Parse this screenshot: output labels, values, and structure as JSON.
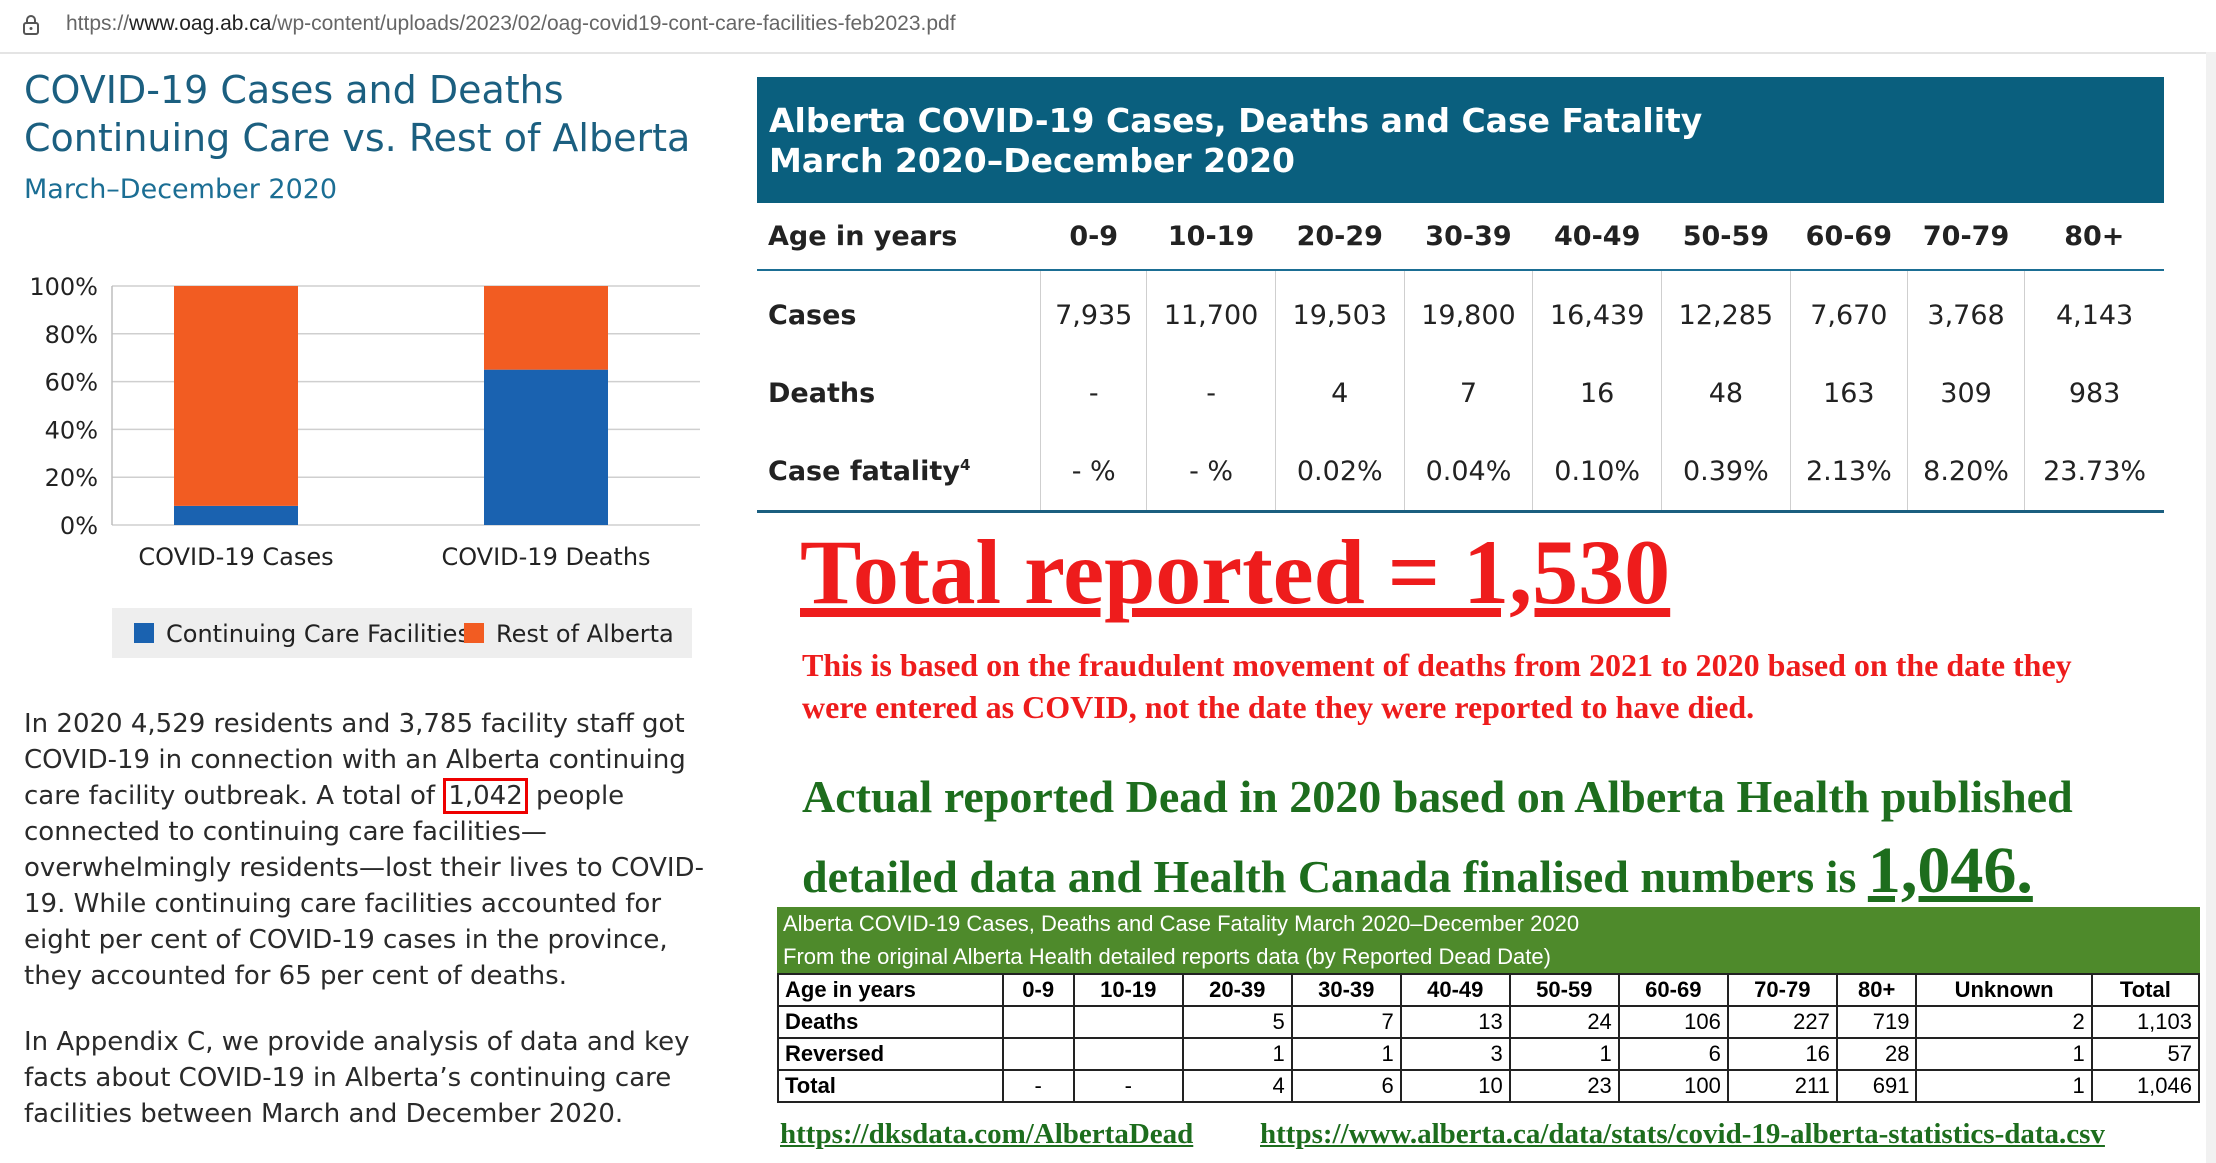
{
  "browser": {
    "url_prefix": "https://",
    "url_domain": "www.oag.ab.ca",
    "url_path": "/wp-content/uploads/2023/02/oag-covid19-cont-care-facilities-feb2023.pdf"
  },
  "left": {
    "title_line1": "COVID-19 Cases and Deaths",
    "title_line2": "Continuing Care vs. Rest of Alberta",
    "subtitle": "March–December 2020",
    "para1_a": "In 2020 4,529 residents and 3,785 facility staff got COVID-19 in connection with an Alberta continuing care facility outbreak. A total of ",
    "para1_boxed": "1,042",
    "para1_b": " people connected to continuing care facilities—overwhelmingly residents—lost their lives to COVID-19. While continuing care facilities accounted for eight per cent of COVID-19 cases in the province, they accounted for 65 per cent of deaths.",
    "para2": "In Appendix C, we provide analysis of data and key facts about COVID-19 in Alberta’s continuing care facilities between March and December 2020."
  },
  "chart_data": {
    "type": "bar",
    "stacked": true,
    "categories": [
      "COVID-19 Cases",
      "COVID-19 Deaths"
    ],
    "series": [
      {
        "name": "Continuing Care Facilities",
        "values": [
          8,
          65
        ],
        "color": "#1a62b0"
      },
      {
        "name": "Rest of Alberta",
        "values": [
          92,
          35
        ],
        "color": "#f25c22"
      }
    ],
    "yticks": [
      "100%",
      "80%",
      "60%",
      "40%",
      "20%",
      "0%"
    ],
    "ylim": [
      0,
      100
    ],
    "legend": "bottom",
    "grid": true
  },
  "main_table": {
    "title_line1": "Alberta COVID-19 Cases, Deaths and Case Fatality",
    "title_line2": "March 2020–December 2020",
    "headers": [
      "Age in years",
      "0-9",
      "10-19",
      "20-29",
      "30-39",
      "40-49",
      "50-59",
      "60-69",
      "70-79",
      "80+"
    ],
    "rows": [
      {
        "label": "Cases",
        "values": [
          "7,935",
          "11,700",
          "19,503",
          "19,800",
          "16,439",
          "12,285",
          "7,670",
          "3,768",
          "4,143"
        ]
      },
      {
        "label": "Deaths",
        "values": [
          "-",
          "-",
          "4",
          "7",
          "16",
          "48",
          "163",
          "309",
          "983"
        ]
      },
      {
        "label": "Case fatality",
        "sup": "4",
        "values": [
          "- %",
          "- %",
          "0.02%",
          "0.04%",
          "0.10%",
          "0.39%",
          "2.13%",
          "8.20%",
          "23.73%"
        ]
      }
    ]
  },
  "annotation": {
    "total": "Total reported = 1,530",
    "red_note": "This is based on the fraudulent movement of deaths from 2021 to 2020 based on the date they were entered as COVID, not the date they were reported to have died.",
    "green_note": "Actual reported Dead in 2020 based on Alberta Health published detailed data and Health Canada finalised numbers is ",
    "green_big": "1,046."
  },
  "small_table": {
    "title_line1": "Alberta COVID-19 Cases, Deaths and Case Fatality March 2020–December 2020",
    "title_line2": "From the original Alberta Health detailed reports data (by Reported Dead Date)",
    "headers": [
      "Age in years",
      "0-9",
      "10-19",
      "20-39",
      "30-39",
      "40-49",
      "50-59",
      "60-69",
      "70-79",
      "80+",
      "Unknown",
      "Total"
    ],
    "rows": [
      {
        "label": "Deaths",
        "values": [
          "",
          "",
          "5",
          "7",
          "13",
          "24",
          "106",
          "227",
          "719",
          "2",
          "1,103"
        ]
      },
      {
        "label": "Reversed",
        "values": [
          "",
          "",
          "1",
          "1",
          "3",
          "1",
          "6",
          "16",
          "28",
          "1",
          "57"
        ]
      },
      {
        "label": "Total",
        "values": [
          "-",
          "-",
          "4",
          "6",
          "10",
          "23",
          "100",
          "211",
          "691",
          "1",
          "1,046"
        ]
      }
    ]
  },
  "links": {
    "left": "https://dksdata.com/AlbertaDead",
    "right": "https://www.alberta.ca/data/stats/covid-19-alberta-statistics-data.csv"
  }
}
